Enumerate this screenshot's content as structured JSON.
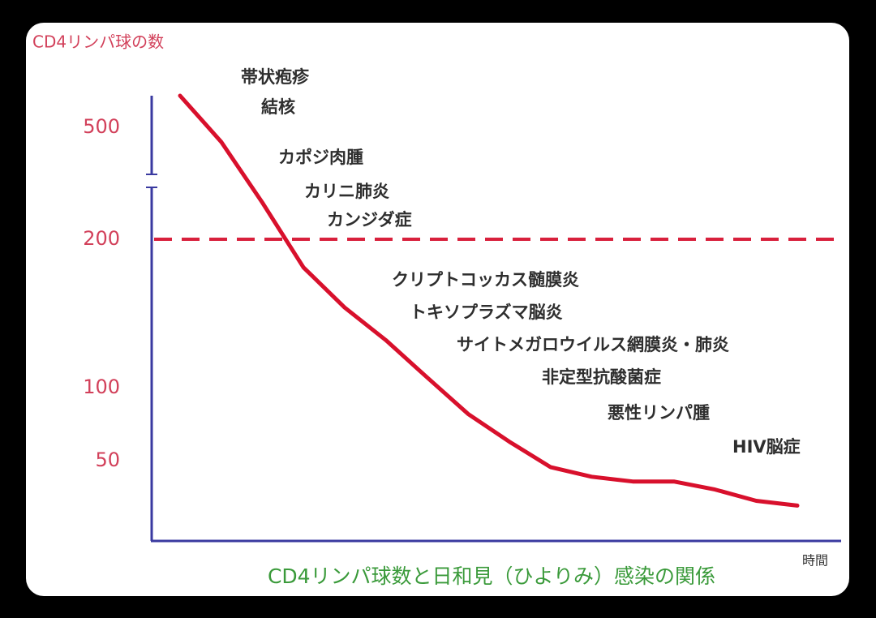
{
  "chart_data": {
    "type": "line",
    "y_axis_label": "CD4リンパ球の数",
    "x_axis_label": "時間",
    "title": "CD4リンパ球数と日和見（ひよりみ）感染の関係",
    "ylim": [
      0,
      600
    ],
    "yticks": [
      50,
      100,
      200,
      500
    ],
    "reference_line": {
      "value": 200,
      "color": "#d8203c"
    },
    "categories": [
      null,
      null,
      null,
      null,
      null,
      null,
      null,
      null,
      null,
      null,
      null,
      null,
      null,
      null,
      null,
      null
    ],
    "series": [
      {
        "color": "#d8102c",
        "values": [
          600,
          461,
          298,
          181,
          154,
          132,
          107,
          82,
          63,
          46,
          40,
          37,
          37,
          32,
          25,
          22
        ]
      }
    ],
    "annotations": [
      "帯状疱疹",
      "結核",
      "カポジ肉腫",
      "カリニ肺炎",
      "カンジダ症",
      "クリプトコッカス髄膜炎",
      "トキソプラズマ脳炎",
      "サイトメガロウイルス網膜炎・肺炎",
      "非定型抗酸菌症",
      "悪性リンパ腫",
      "HIV脳症"
    ]
  }
}
